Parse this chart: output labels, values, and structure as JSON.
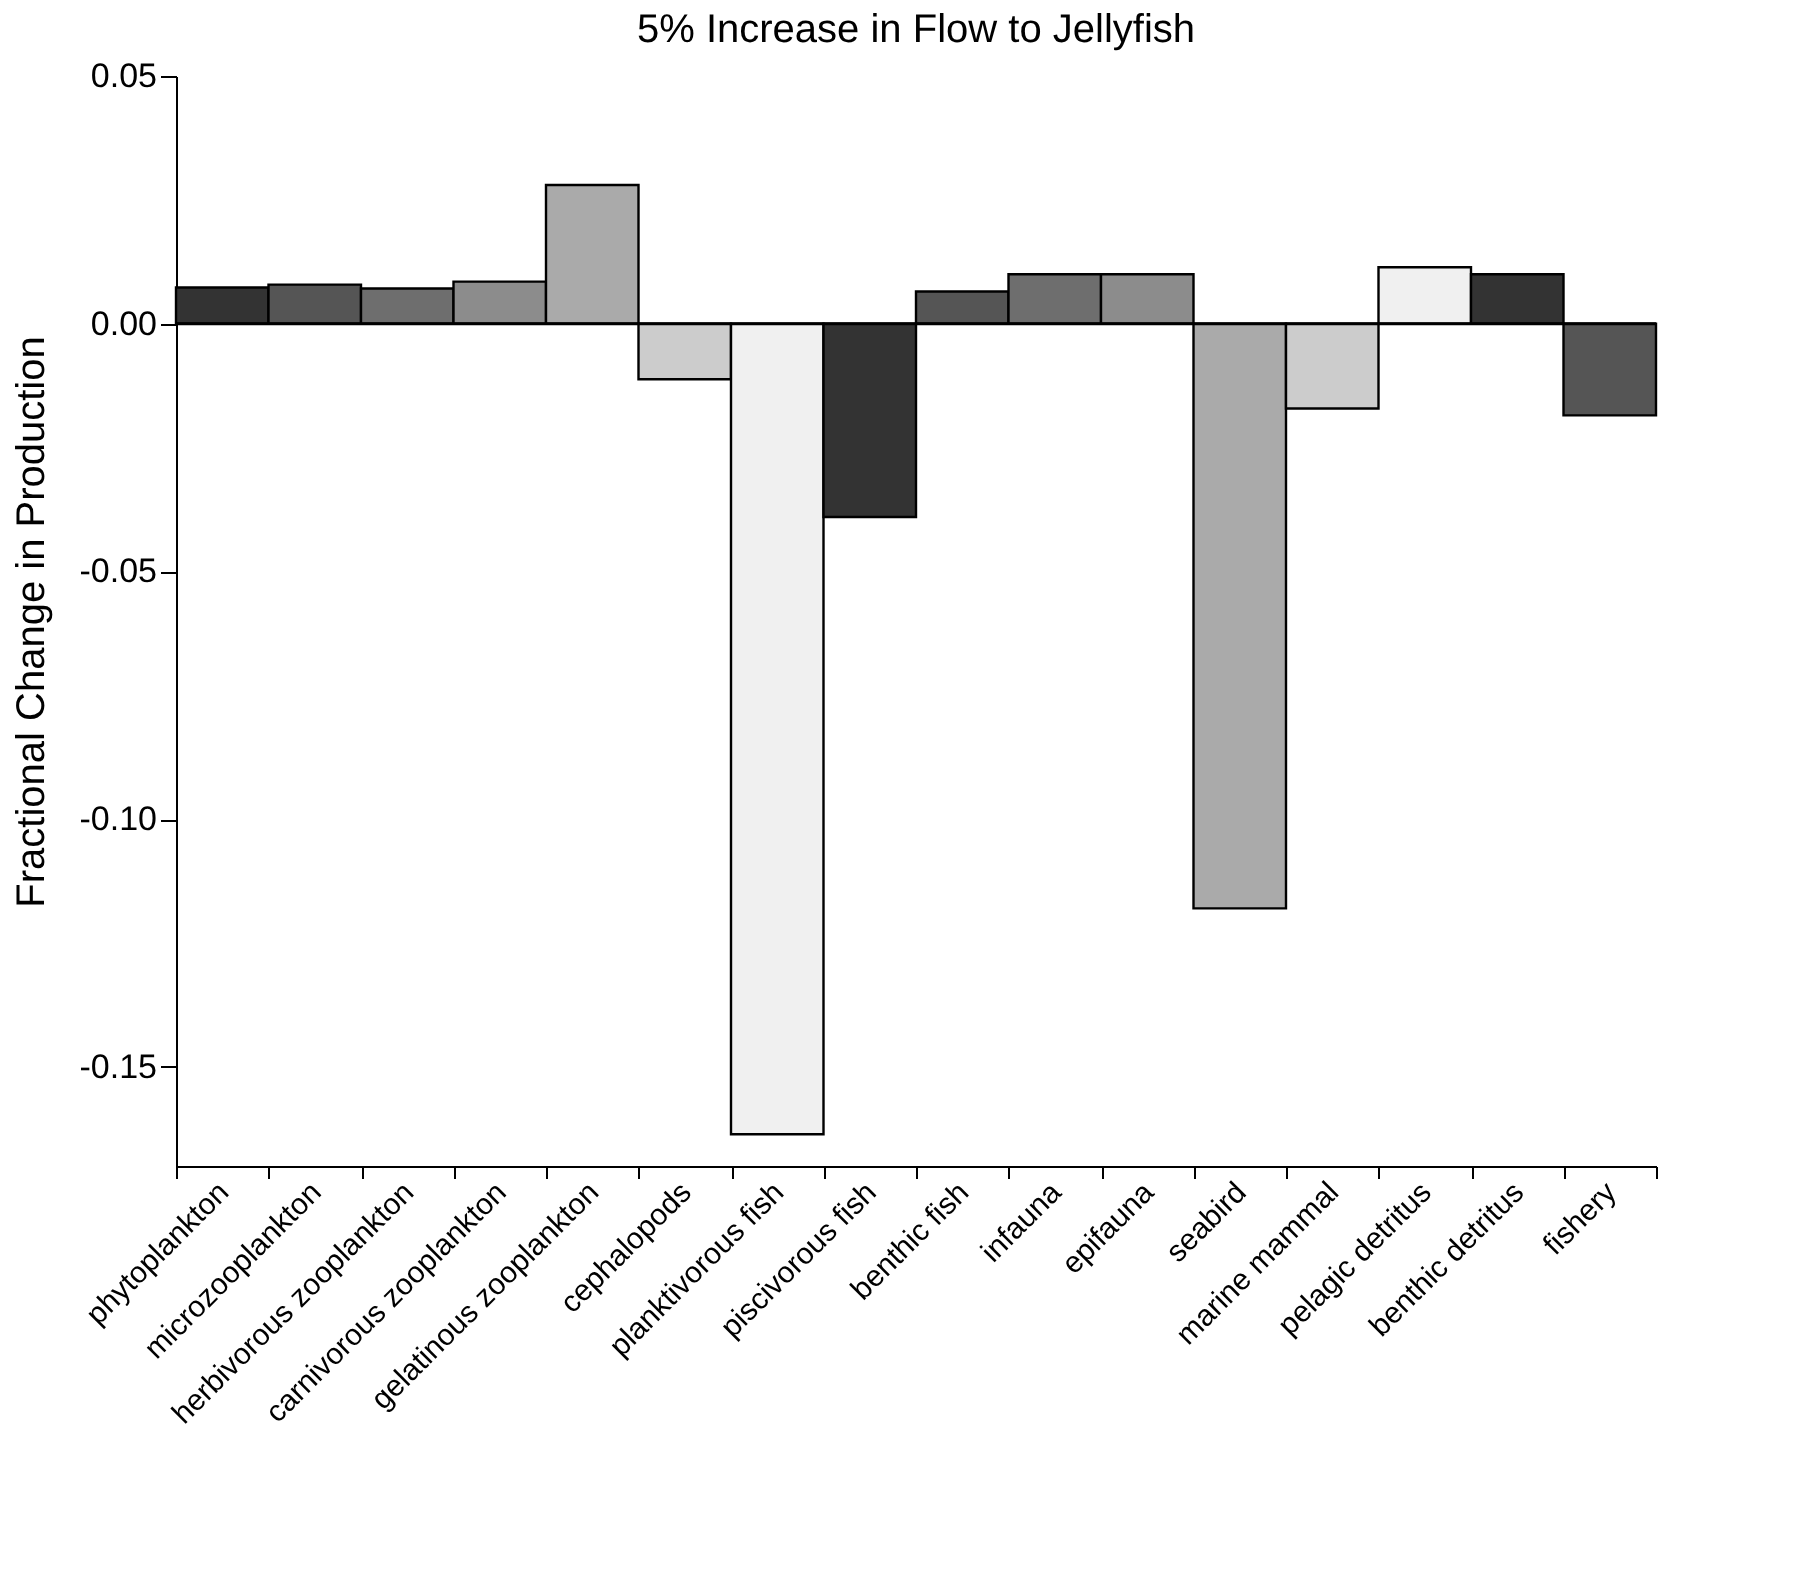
{
  "chart_data": {
    "type": "bar",
    "title": "5% Increase in Flow to Jellyfish",
    "ylabel": "Fractional Change in Production",
    "categories": [
      "phytoplankton",
      "microzooplankton",
      "herbivorous zooplankton",
      "carnivorous zooplankton",
      "gelatinous zooplankton",
      "cephalopods",
      "planktivorous fish",
      "piscivorous fish",
      "benthic fish",
      "infauna",
      "epifauna",
      "seabird",
      "marine mammal",
      "pelagic detritus",
      "benthic detritus",
      "fishery"
    ],
    "values": [
      0.0073,
      0.0079,
      0.0071,
      0.0085,
      0.028,
      -0.0112,
      -0.1636,
      -0.039,
      0.0065,
      0.01,
      0.01,
      -0.118,
      -0.0171,
      0.0114,
      0.01,
      -0.0185
    ],
    "colors": [
      "#333333",
      "#555555",
      "#6e6e6e",
      "#8c8c8c",
      "#aaaaaa",
      "#cccccc",
      "#f0f0f0",
      "#333333",
      "#555555",
      "#6e6e6e",
      "#8c8c8c",
      "#aaaaaa",
      "#cccccc",
      "#f0f0f0",
      "#333333",
      "#555555"
    ],
    "ylim": [
      -0.17,
      0.05
    ],
    "yticks": [
      {
        "value": 0.05,
        "label": "0.05"
      },
      {
        "value": 0,
        "label": "0.00"
      },
      {
        "value": -0.05,
        "label": "-0.05"
      },
      {
        "value": -0.1,
        "label": "-0.10"
      },
      {
        "value": -0.15,
        "label": "-0.15"
      }
    ],
    "grid": false,
    "ref_lines": [
      {
        "axis": "y",
        "value": 0
      }
    ]
  }
}
